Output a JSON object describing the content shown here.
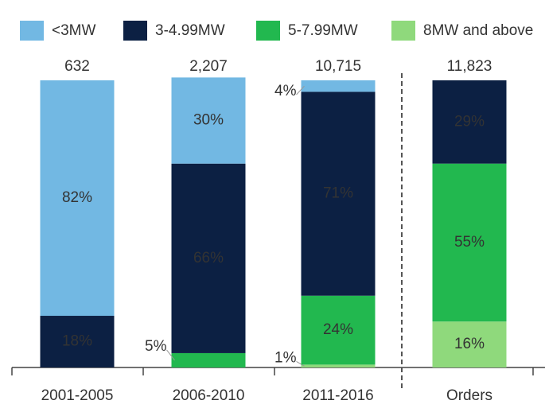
{
  "chart_data": {
    "type": "stacked_bar_percent",
    "categories": [
      "2001-2005",
      "2006-2010",
      "2011-2016",
      "Orders"
    ],
    "ylim": [
      0,
      100
    ],
    "totals": {
      "values": [
        632,
        2207,
        10715,
        11823
      ],
      "value_labels": [
        "632",
        "2,207",
        "10,715",
        "11,823"
      ]
    },
    "series": [
      {
        "name": "<3MW",
        "color": "#72b8e3",
        "values": [
          82,
          30,
          4,
          null
        ],
        "value_labels": [
          "82%",
          "30%",
          "4%",
          null
        ]
      },
      {
        "name": "3-4.99MW",
        "color": "#0c2043",
        "values": [
          18,
          66,
          71,
          29
        ],
        "value_labels": [
          "18%",
          "66%",
          "71%",
          "29%"
        ]
      },
      {
        "name": "5-7.99MW",
        "color": "#22b84f",
        "values": [
          null,
          5,
          24,
          55
        ],
        "value_labels": [
          null,
          "5%",
          "24%",
          "55%"
        ]
      },
      {
        "name": "8MW and above",
        "color": "#8fd97c",
        "values": [
          null,
          null,
          1,
          16
        ],
        "value_labels": [
          null,
          null,
          "1%",
          "16%"
        ]
      }
    ]
  }
}
